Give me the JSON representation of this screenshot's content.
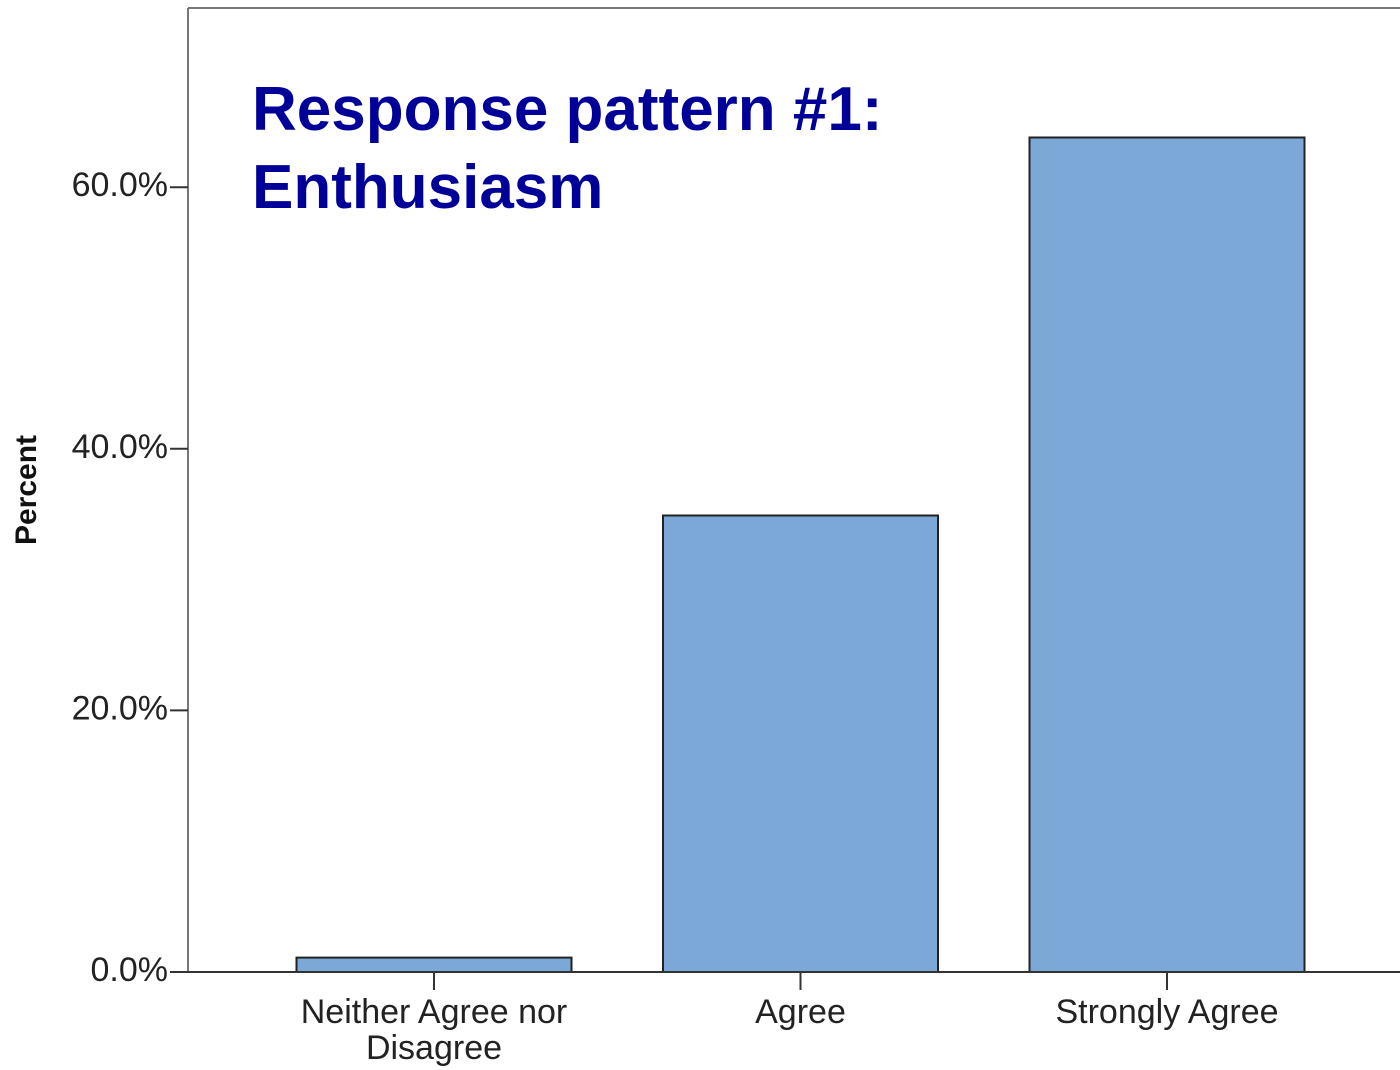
{
  "chart_data": {
    "type": "bar",
    "title": [
      "Response pattern #1:",
      "Enthusiasm"
    ],
    "y_label": "Percent",
    "categories": [
      "Neither Agree nor Disagree",
      "Agree",
      "Strongly Agree"
    ],
    "values": [
      1.1,
      34.9,
      63.8
    ],
    "color": "#7ba8d6",
    "ylim": [
      0,
      73.7
    ],
    "yticks": [
      {
        "value": 0,
        "label": "0.0%"
      },
      {
        "value": 20,
        "label": "20.0%"
      },
      {
        "value": 40,
        "label": "40.0%"
      },
      {
        "value": 60,
        "label": "60.0%"
      }
    ],
    "grid": false
  }
}
